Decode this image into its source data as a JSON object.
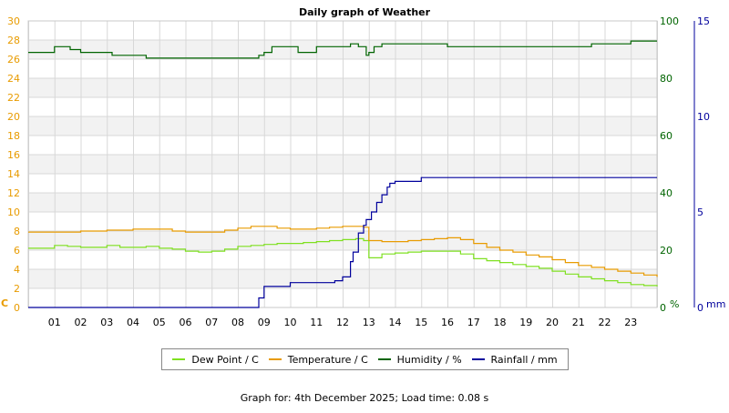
{
  "chart_data": {
    "type": "line",
    "title": "Daily graph of Weather",
    "x_ticks": [
      "01",
      "02",
      "03",
      "04",
      "05",
      "06",
      "07",
      "08",
      "09",
      "10",
      "11",
      "12",
      "13",
      "14",
      "15",
      "16",
      "17",
      "18",
      "19",
      "20",
      "21",
      "22",
      "23"
    ],
    "x_range": [
      0,
      24
    ],
    "y_left": {
      "label": "C",
      "range": [
        0,
        30
      ],
      "ticks": [
        "0",
        "2",
        "4",
        "6",
        "8",
        "10",
        "12",
        "14",
        "16",
        "18",
        "20",
        "22",
        "24",
        "26",
        "28",
        "30"
      ],
      "color": "#e89b00"
    },
    "y_mid": {
      "label": "%",
      "range": [
        0,
        100
      ],
      "ticks": [
        "0",
        "20",
        "40",
        "60",
        "80",
        "100"
      ],
      "color": "#006400"
    },
    "y_right": {
      "label": "mm",
      "range": [
        0,
        15
      ],
      "ticks": [
        "0",
        "5",
        "10",
        "15"
      ],
      "color": "#00009c"
    },
    "grid": true,
    "series": [
      {
        "name": "Dew Point / C",
        "axis": "left",
        "color": "#7fe020",
        "x": [
          0,
          0.8,
          1.0,
          1.5,
          2.0,
          2.5,
          3.0,
          3.5,
          4.0,
          4.5,
          5.0,
          5.5,
          6.0,
          6.5,
          7.0,
          7.5,
          8.0,
          8.5,
          9.0,
          9.5,
          10.0,
          10.5,
          11.0,
          11.5,
          12.0,
          12.5,
          12.8,
          13.0,
          13.5,
          14.0,
          14.5,
          15.0,
          15.5,
          16.0,
          16.5,
          17.0,
          17.5,
          18.0,
          18.5,
          19.0,
          19.5,
          20.0,
          20.5,
          21.0,
          21.5,
          22.0,
          22.5,
          23.0,
          23.5,
          24.0
        ],
        "y": [
          6.2,
          6.2,
          6.5,
          6.4,
          6.3,
          6.3,
          6.5,
          6.3,
          6.3,
          6.4,
          6.2,
          6.1,
          5.9,
          5.8,
          5.9,
          6.1,
          6.4,
          6.5,
          6.6,
          6.7,
          6.7,
          6.8,
          6.9,
          7.0,
          7.1,
          7.2,
          7.0,
          5.2,
          5.6,
          5.7,
          5.8,
          5.9,
          5.9,
          5.9,
          5.6,
          5.1,
          4.9,
          4.7,
          4.5,
          4.3,
          4.1,
          3.8,
          3.5,
          3.2,
          3.0,
          2.8,
          2.6,
          2.4,
          2.3,
          2.2
        ]
      },
      {
        "name": "Temperature / C",
        "axis": "left",
        "color": "#e89b00",
        "x": [
          0,
          1.0,
          2.0,
          2.5,
          3.0,
          3.5,
          4.0,
          4.5,
          5.0,
          5.5,
          6.0,
          6.5,
          7.0,
          7.5,
          8.0,
          8.5,
          9.0,
          9.5,
          10.0,
          10.5,
          11.0,
          11.5,
          12.0,
          12.5,
          12.8,
          13.0,
          13.5,
          14.0,
          14.5,
          15.0,
          15.5,
          16.0,
          16.5,
          17.0,
          17.5,
          18.0,
          18.5,
          19.0,
          19.5,
          20.0,
          20.5,
          21.0,
          21.5,
          22.0,
          22.5,
          23.0,
          23.5,
          24.0
        ],
        "y": [
          7.9,
          7.9,
          8.0,
          8.0,
          8.1,
          8.1,
          8.2,
          8.2,
          8.2,
          8.0,
          7.9,
          7.9,
          7.9,
          8.1,
          8.3,
          8.5,
          8.5,
          8.3,
          8.2,
          8.2,
          8.3,
          8.4,
          8.5,
          8.5,
          8.4,
          7.0,
          6.9,
          6.9,
          7.0,
          7.1,
          7.2,
          7.3,
          7.1,
          6.7,
          6.3,
          6.0,
          5.8,
          5.5,
          5.3,
          5.0,
          4.7,
          4.4,
          4.2,
          4.0,
          3.8,
          3.6,
          3.4,
          3.2
        ]
      },
      {
        "name": "Humidity / %",
        "axis": "mid",
        "color": "#006400",
        "x": [
          0,
          0.7,
          1.0,
          1.6,
          2.0,
          3.0,
          3.2,
          3.8,
          4.2,
          4.5,
          5.0,
          6.0,
          7.0,
          7.5,
          8.0,
          8.6,
          8.8,
          9.0,
          9.3,
          10.0,
          10.3,
          11.0,
          11.5,
          12.0,
          12.3,
          12.6,
          12.9,
          13.0,
          13.2,
          13.5,
          14.0,
          14.5,
          15.0,
          15.5,
          16.0,
          16.3,
          16.6,
          17.0,
          17.3,
          17.6,
          18.0,
          19.0,
          20.0,
          20.5,
          21.0,
          21.5,
          22.0,
          22.5,
          23.0,
          24.0
        ],
        "y": [
          89,
          89,
          91,
          90,
          89,
          89,
          88,
          88,
          88,
          87,
          87,
          87,
          87,
          87,
          87,
          87,
          88,
          89,
          91,
          91,
          89,
          91,
          91,
          91,
          92,
          91,
          88,
          89,
          91,
          92,
          92,
          92,
          92,
          92,
          91,
          91,
          91,
          91,
          91,
          91,
          91,
          91,
          91,
          91,
          91,
          92,
          92,
          92,
          93,
          93
        ]
      },
      {
        "name": "Rainfall / mm",
        "axis": "right",
        "color": "#00009c",
        "x": [
          0,
          8.65,
          8.8,
          9.0,
          9.5,
          9.9,
          10.0,
          11.0,
          11.5,
          11.7,
          12.0,
          12.3,
          12.4,
          12.6,
          12.8,
          12.9,
          13.1,
          13.3,
          13.5,
          13.7,
          13.8,
          14.0,
          14.5,
          15.0,
          24.0
        ],
        "y": [
          0.0,
          0.0,
          0.5,
          1.1,
          1.1,
          1.1,
          1.3,
          1.3,
          1.3,
          1.4,
          1.6,
          2.4,
          2.9,
          3.9,
          4.3,
          4.6,
          5.0,
          5.5,
          5.9,
          6.3,
          6.5,
          6.6,
          6.6,
          6.8,
          6.8
        ]
      }
    ]
  },
  "footer_text": "Graph for: 4th December 2025; Load time: 0.08 s"
}
